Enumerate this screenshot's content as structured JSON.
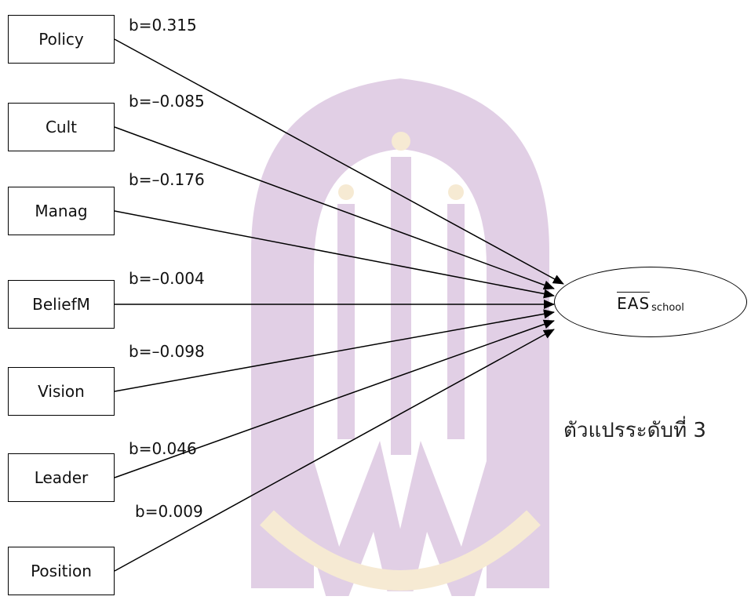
{
  "predictors": [
    {
      "name": "Policy",
      "coefficient": "b=0.315"
    },
    {
      "name": "Cult",
      "coefficient": "b=–0.085"
    },
    {
      "name": "Manag",
      "coefficient": "b=–0.176"
    },
    {
      "name": "BeliefM",
      "coefficient": "b=–0.004"
    },
    {
      "name": "Vision",
      "coefficient": "b=–0.098"
    },
    {
      "name": "Leader",
      "coefficient": "b=0.046"
    },
    {
      "name": "Position",
      "coefficient": "b=0.009"
    }
  ],
  "outcome": {
    "main": "EAS",
    "subscript": "school"
  },
  "level_label": "ตัวแปรระดับที่ 3",
  "colors": {
    "line": "#000000",
    "watermark_purple": "#7a2a8c",
    "watermark_gold": "#d9a23a"
  }
}
